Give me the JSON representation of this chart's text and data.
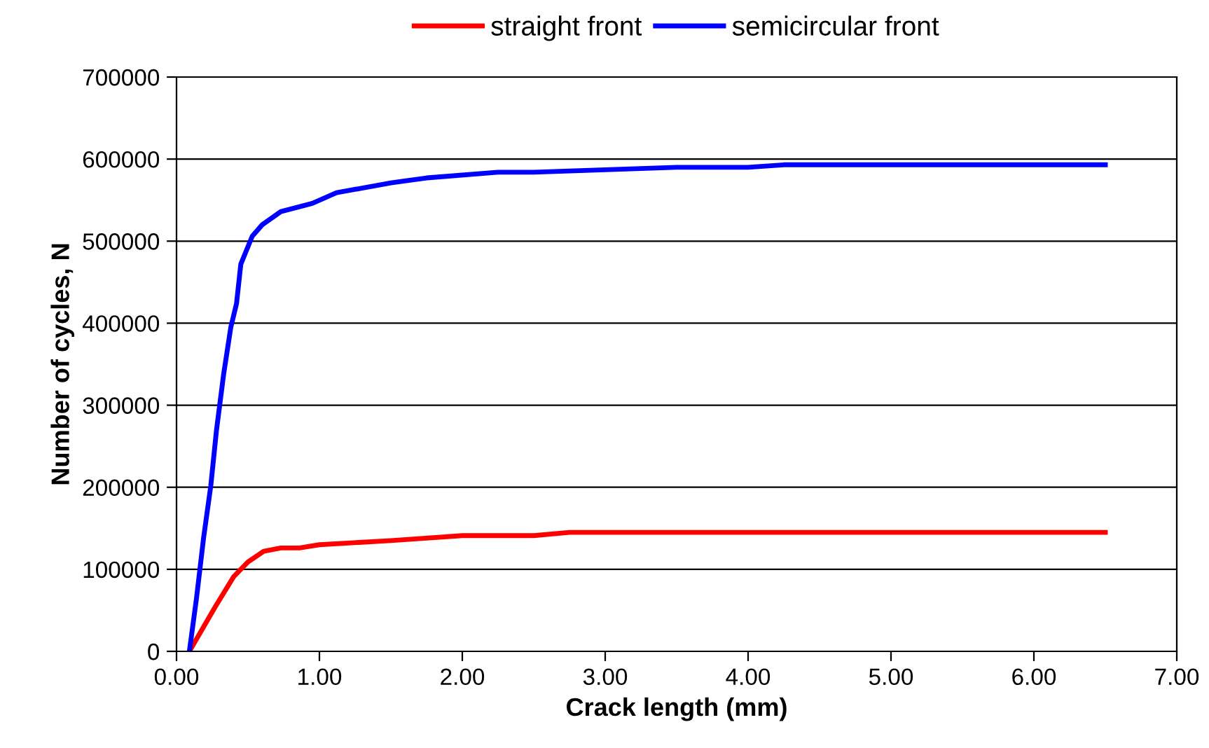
{
  "chart_data": {
    "type": "line",
    "xlabel": "Crack length (mm)",
    "ylabel": "Number of cycles, N",
    "xlim": [
      0,
      7
    ],
    "xticks": [
      {
        "value": 0,
        "label": "0.00"
      },
      {
        "value": 1,
        "label": "1.00"
      },
      {
        "value": 2,
        "label": "2.00"
      },
      {
        "value": 3,
        "label": "3.00"
      },
      {
        "value": 4,
        "label": "4.00"
      },
      {
        "value": 5,
        "label": "5.00"
      },
      {
        "value": 6,
        "label": "6.00"
      },
      {
        "value": 7,
        "label": "7.00"
      }
    ],
    "ylim": [
      0,
      700000
    ],
    "yticks": [
      0,
      100000,
      200000,
      300000,
      400000,
      500000,
      600000,
      700000
    ],
    "grid": "y",
    "legend": "top",
    "marker": "none",
    "line_style": "solid",
    "series": [
      {
        "name": "straight front",
        "color": "#ff0000",
        "x": [
          0.09,
          0.27,
          0.4,
          0.5,
          0.61,
          0.73,
          0.86,
          1.0,
          1.5,
          2.0,
          2.5,
          2.75,
          3.5,
          4.0,
          5.0,
          6.0,
          6.5
        ],
        "values": [
          0,
          54000,
          91000,
          109000,
          122000,
          126000,
          126000,
          130000,
          135000,
          141000,
          141000,
          145000,
          145000,
          145000,
          145000,
          145000,
          145000
        ]
      },
      {
        "name": "semicircular front",
        "color": "#0000ff",
        "x": [
          0.09,
          0.14,
          0.19,
          0.24,
          0.28,
          0.33,
          0.38,
          0.42,
          0.45,
          0.53,
          0.6,
          0.73,
          0.95,
          1.12,
          1.5,
          1.75,
          2.25,
          2.5,
          3.0,
          3.5,
          4.0,
          4.25,
          5.0,
          6.0,
          6.5
        ],
        "values": [
          0,
          65000,
          139000,
          202000,
          270000,
          338000,
          395000,
          424000,
          472000,
          506000,
          520000,
          536000,
          546000,
          559000,
          571000,
          577000,
          584000,
          584000,
          587000,
          590000,
          590000,
          593000,
          593000,
          593000,
          593000
        ]
      }
    ]
  }
}
